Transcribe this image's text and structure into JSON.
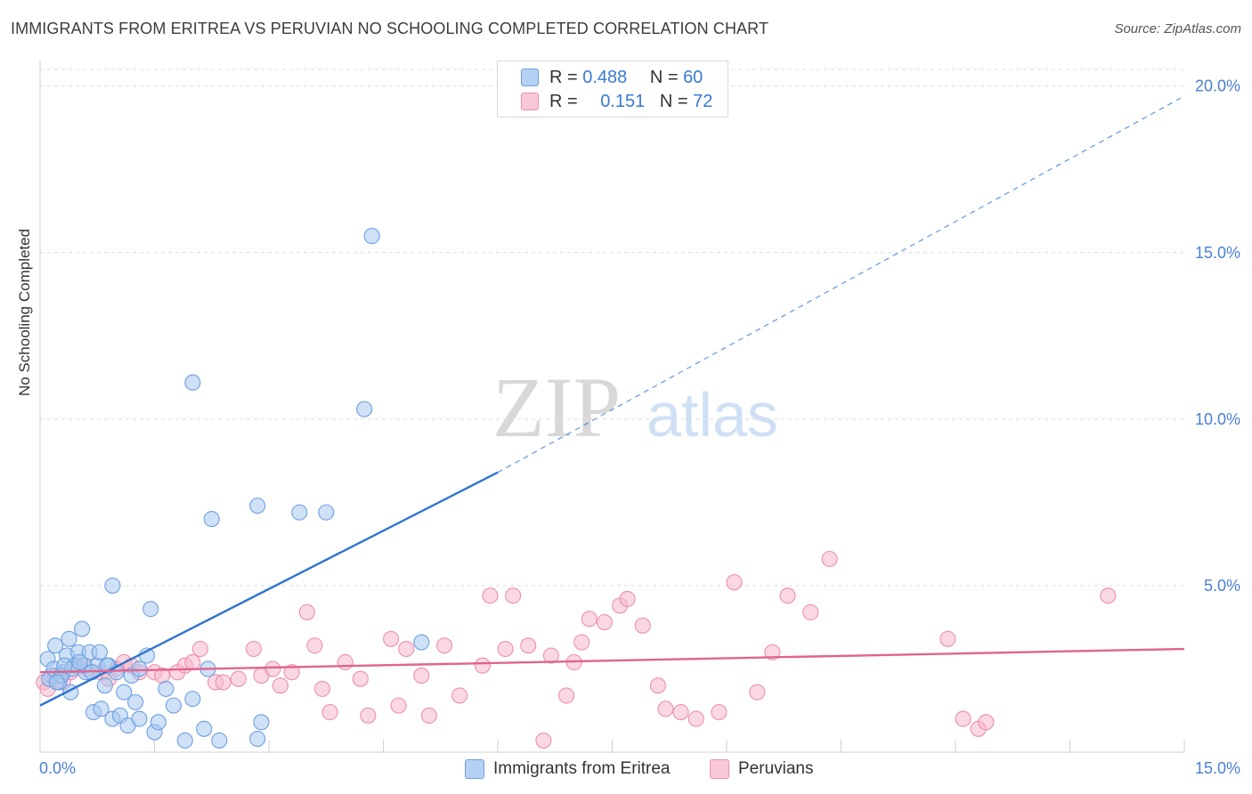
{
  "title": "IMMIGRANTS FROM ERITREA VS PERUVIAN NO SCHOOLING COMPLETED CORRELATION CHART",
  "source": "Source: ZipAtlas.com",
  "watermark": {
    "zip": "ZIP",
    "atlas": "atlas"
  },
  "legend": {
    "rows": [
      {
        "r_label": "R =",
        "r_value": "0.488",
        "n_label": "N =",
        "n_value": "60"
      },
      {
        "r_label": "R =",
        "r_value": "0.151",
        "n_label": "N =",
        "n_value": "72"
      }
    ]
  },
  "bottom_legend": [
    "Immigrants from Eritrea",
    "Peruvians"
  ],
  "colors": {
    "blue_fill": "#a8c8f0",
    "blue_stroke": "#6d9fe0",
    "blue_line": "#2e74d0",
    "pink_fill": "#f6b8cc",
    "pink_stroke": "#ec8fae",
    "pink_line": "#e0648e",
    "grid": "#dcdcdc",
    "axis_text": "#4a7fd4"
  },
  "chart_data": {
    "type": "scatter",
    "title": "IMMIGRANTS FROM ERITREA VS PERUVIAN NO SCHOOLING COMPLETED CORRELATION CHART",
    "xlabel": "",
    "ylabel": "No Schooling Completed",
    "xlim": [
      0,
      15
    ],
    "ylim": [
      0,
      20.5
    ],
    "x_tick_labels": [
      "0.0%",
      "15.0%"
    ],
    "y_ticks": [
      5,
      10,
      15,
      20
    ],
    "y_tick_labels": [
      "5.0%",
      "10.0%",
      "15.0%",
      "20.0%"
    ],
    "series": [
      {
        "name": "Immigrants from Eritrea",
        "r": 0.488,
        "n": 60,
        "trend": {
          "x0": 0,
          "y0": 1.4,
          "x1": 6.0,
          "y1": 8.4,
          "dash_to_x": 15,
          "dash_to_y": 19.7
        },
        "points": [
          [
            0.1,
            2.8
          ],
          [
            0.15,
            2.3
          ],
          [
            0.2,
            3.2
          ],
          [
            0.25,
            2.1
          ],
          [
            0.3,
            2.4
          ],
          [
            0.35,
            2.9
          ],
          [
            0.4,
            1.8
          ],
          [
            0.45,
            2.6
          ],
          [
            0.5,
            3.0
          ],
          [
            0.55,
            3.7
          ],
          [
            0.6,
            2.4
          ],
          [
            0.65,
            3.0
          ],
          [
            0.7,
            1.2
          ],
          [
            0.75,
            2.6
          ],
          [
            0.8,
            1.3
          ],
          [
            0.85,
            2.0
          ],
          [
            0.9,
            2.6
          ],
          [
            0.95,
            1.0
          ],
          [
            1.0,
            2.4
          ],
          [
            1.05,
            1.1
          ],
          [
            1.1,
            1.8
          ],
          [
            1.2,
            2.3
          ],
          [
            1.25,
            1.5
          ],
          [
            1.3,
            2.5
          ],
          [
            1.45,
            4.3
          ],
          [
            1.5,
            0.6
          ],
          [
            1.55,
            0.9
          ],
          [
            1.65,
            1.9
          ],
          [
            1.75,
            1.4
          ],
          [
            1.9,
            0.35
          ],
          [
            2.0,
            1.6
          ],
          [
            2.15,
            0.7
          ],
          [
            2.2,
            2.5
          ],
          [
            2.35,
            0.35
          ],
          [
            2.85,
            0.4
          ],
          [
            2.9,
            0.9
          ],
          [
            0.12,
            2.2
          ],
          [
            0.18,
            2.5
          ],
          [
            0.28,
            2.3
          ],
          [
            0.38,
            3.4
          ],
          [
            0.42,
            2.5
          ],
          [
            0.58,
            2.6
          ],
          [
            0.68,
            2.4
          ],
          [
            0.78,
            3.0
          ],
          [
            0.88,
            2.6
          ],
          [
            1.4,
            2.9
          ],
          [
            0.22,
            2.1
          ],
          [
            0.32,
            2.6
          ],
          [
            0.52,
            2.7
          ],
          [
            1.15,
            0.8
          ],
          [
            1.3,
            1.0
          ],
          [
            0.95,
            5.0
          ],
          [
            2.25,
            7.0
          ],
          [
            2.85,
            7.4
          ],
          [
            3.4,
            7.2
          ],
          [
            3.75,
            7.2
          ],
          [
            2.0,
            11.1
          ],
          [
            4.25,
            10.3
          ],
          [
            4.35,
            15.5
          ],
          [
            5.0,
            3.3
          ]
        ]
      },
      {
        "name": "Peruvians",
        "r": 0.151,
        "n": 72,
        "trend": {
          "x0": 0,
          "y0": 2.4,
          "x1": 15,
          "y1": 3.1
        },
        "points": [
          [
            0.05,
            2.1
          ],
          [
            0.1,
            1.9
          ],
          [
            0.2,
            2.3
          ],
          [
            0.3,
            2.1
          ],
          [
            0.4,
            2.4
          ],
          [
            0.5,
            2.6
          ],
          [
            0.6,
            2.5
          ],
          [
            0.8,
            2.4
          ],
          [
            0.9,
            2.2
          ],
          [
            1.0,
            2.5
          ],
          [
            1.1,
            2.7
          ],
          [
            1.2,
            2.6
          ],
          [
            1.3,
            2.4
          ],
          [
            1.5,
            2.4
          ],
          [
            1.6,
            2.3
          ],
          [
            1.8,
            2.4
          ],
          [
            1.9,
            2.6
          ],
          [
            2.0,
            2.7
          ],
          [
            2.1,
            3.1
          ],
          [
            2.3,
            2.1
          ],
          [
            2.4,
            2.1
          ],
          [
            2.6,
            2.2
          ],
          [
            2.8,
            3.1
          ],
          [
            2.9,
            2.3
          ],
          [
            3.05,
            2.5
          ],
          [
            3.15,
            2.0
          ],
          [
            3.3,
            2.4
          ],
          [
            3.5,
            4.2
          ],
          [
            3.6,
            3.2
          ],
          [
            3.7,
            1.9
          ],
          [
            3.8,
            1.2
          ],
          [
            4.0,
            2.7
          ],
          [
            4.2,
            2.2
          ],
          [
            4.3,
            1.1
          ],
          [
            4.6,
            3.4
          ],
          [
            4.7,
            1.4
          ],
          [
            4.8,
            3.1
          ],
          [
            5.0,
            2.3
          ],
          [
            5.1,
            1.1
          ],
          [
            5.3,
            3.2
          ],
          [
            5.5,
            1.7
          ],
          [
            5.8,
            2.6
          ],
          [
            5.9,
            4.7
          ],
          [
            6.2,
            4.7
          ],
          [
            6.1,
            3.1
          ],
          [
            6.4,
            3.2
          ],
          [
            6.6,
            0.35
          ],
          [
            6.7,
            2.9
          ],
          [
            6.9,
            1.7
          ],
          [
            7.0,
            2.7
          ],
          [
            7.1,
            3.3
          ],
          [
            7.2,
            4.0
          ],
          [
            7.4,
            3.9
          ],
          [
            7.6,
            4.4
          ],
          [
            7.7,
            4.6
          ],
          [
            7.9,
            3.8
          ],
          [
            8.1,
            2.0
          ],
          [
            8.2,
            1.3
          ],
          [
            8.4,
            1.2
          ],
          [
            8.6,
            1.0
          ],
          [
            8.9,
            1.2
          ],
          [
            9.1,
            5.1
          ],
          [
            9.4,
            1.8
          ],
          [
            9.6,
            3.0
          ],
          [
            9.8,
            4.7
          ],
          [
            10.1,
            4.2
          ],
          [
            10.35,
            5.8
          ],
          [
            11.9,
            3.4
          ],
          [
            12.1,
            1.0
          ],
          [
            12.3,
            0.7
          ],
          [
            12.4,
            0.9
          ],
          [
            14.0,
            4.7
          ]
        ]
      }
    ]
  }
}
